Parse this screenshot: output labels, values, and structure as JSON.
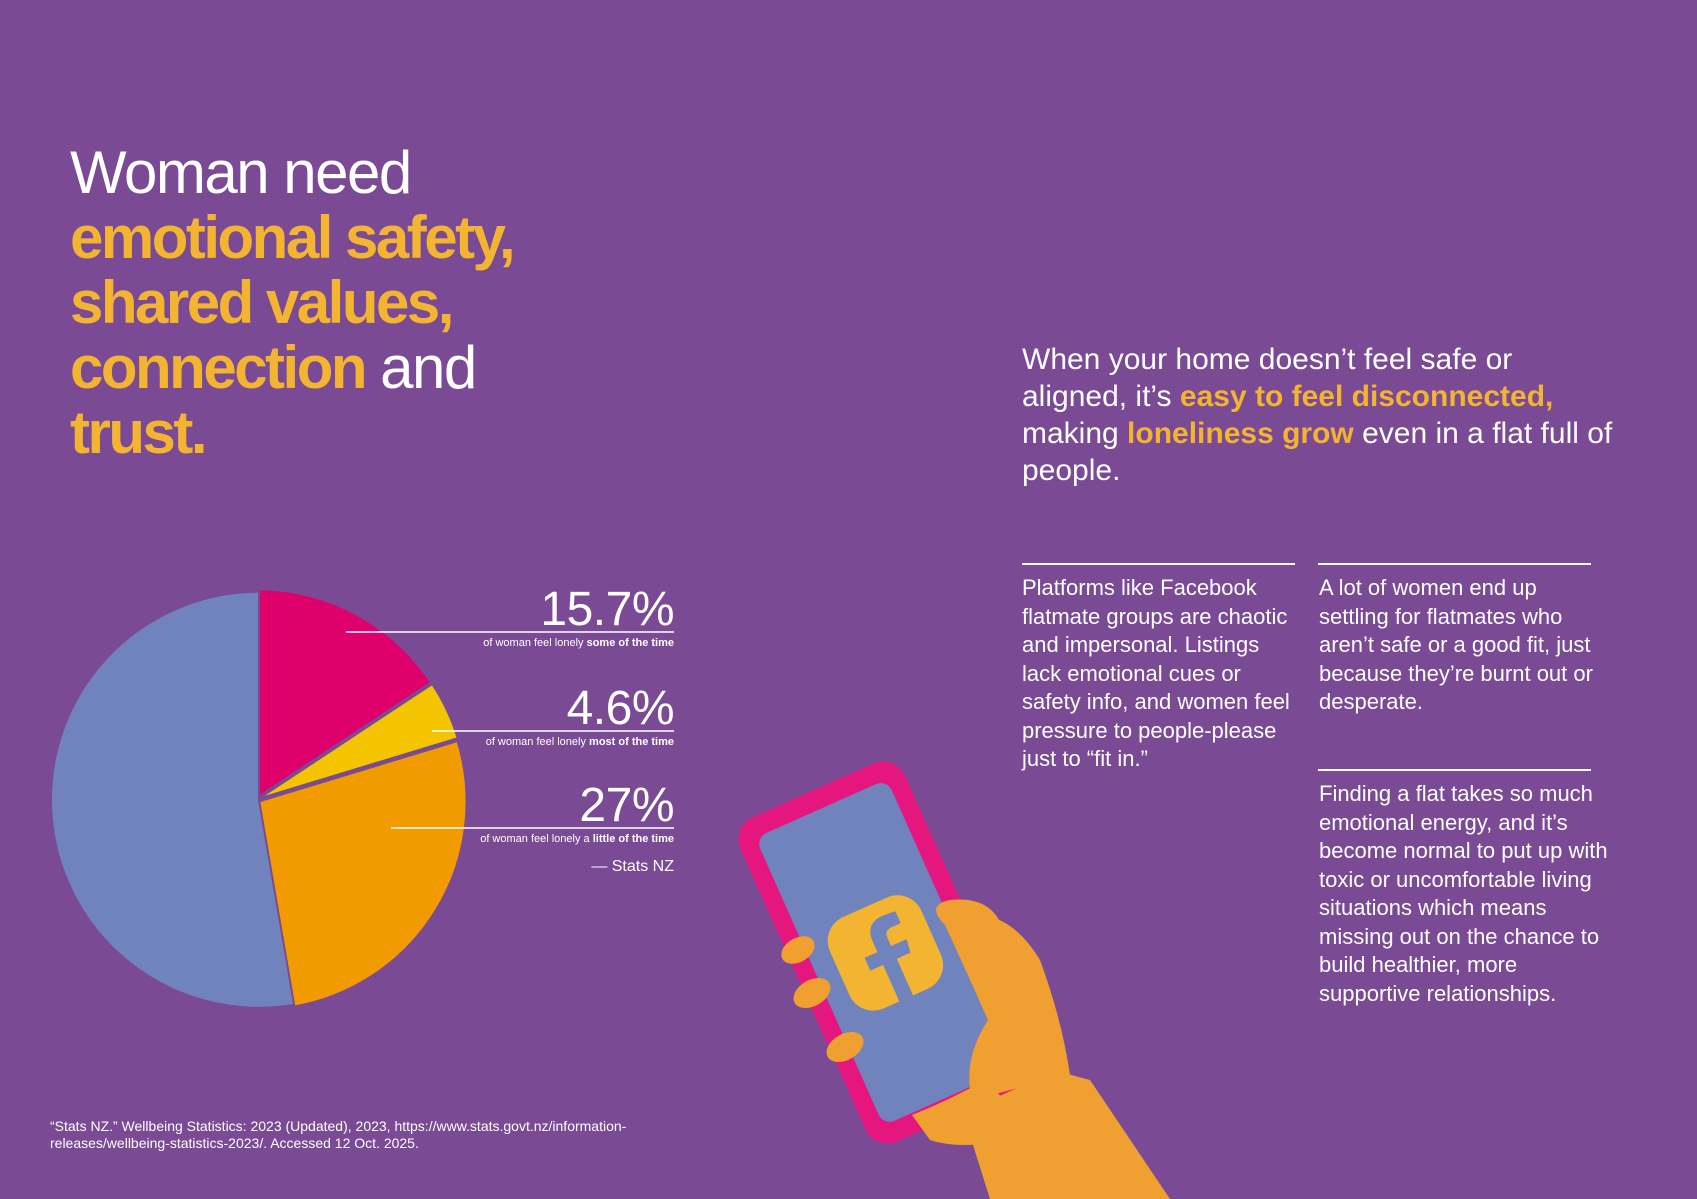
{
  "headline": {
    "line1": "Woman need",
    "line2": "emotional safety,",
    "line3": "shared values,",
    "line4_highlight": "connection",
    "line4_rest": " and",
    "line5": "trust."
  },
  "intro": {
    "part1": "When your home doesn’t feel safe or aligned, it’s ",
    "highlight1": "easy to feel disconnected,",
    "part2": " making ",
    "highlight2": "loneliness grow",
    "part3": " even in a flat full of people."
  },
  "columns": {
    "left": "Platforms like Facebook flatmate groups are chaotic and impersonal. Listings lack emotional cues or safety info, and women feel pressure to people-please just to “fit in.”",
    "right_top": "A lot of women end up settling for flatmates who aren’t safe or a good fit, just because they’re burnt out or desperate.",
    "right_bottom": "Finding a flat takes so much emotional energy, and it’s become normal to put up with toxic or uncomfortable living situations which means missing out on the chance to build healthier, more supportive relationships."
  },
  "stats": [
    {
      "value": "15.7%",
      "caption_pre": "of woman feel lonely ",
      "caption_bold": "some of the time"
    },
    {
      "value": "4.6%",
      "caption_pre": "of woman feel lonely ",
      "caption_bold": "most of the time"
    },
    {
      "value": "27%",
      "caption_pre": "of woman feel lonely a ",
      "caption_bold": "little of the time"
    }
  ],
  "source": "— Stats NZ",
  "citation": "“Stats NZ.” Wellbeing Statistics: 2023 (Updated), 2023, https://www.stats.govt.nz/information-releases/wellbeing-statistics-2023/. Accessed 12 Oct. 2025.",
  "phone": {
    "app_icon": "facebook-icon"
  },
  "colors": {
    "background": "#7a4a94",
    "accent": "#f3b431",
    "text": "#ffffff",
    "some_of_the_time": "#e0006b",
    "most_of_the_time": "#f5c400",
    "little_of_the_time": "#f29b00",
    "remainder": "#7183bd",
    "phone_frame": "#e5177e",
    "hand": "#f0a030"
  },
  "chart_data": {
    "type": "pie",
    "title": "",
    "slices": [
      {
        "label": "15.7%",
        "value": 15.7,
        "color": "#e0006b"
      },
      {
        "label": "4.6%",
        "value": 4.6,
        "color": "#f5c400"
      },
      {
        "label": "27%",
        "value": 27,
        "color": "#f29b00"
      },
      {
        "label": "",
        "value": 52.7,
        "color": "#7183bd"
      }
    ],
    "start_angle": "12 o'clock",
    "direction": "clockwise",
    "legend": "none"
  }
}
